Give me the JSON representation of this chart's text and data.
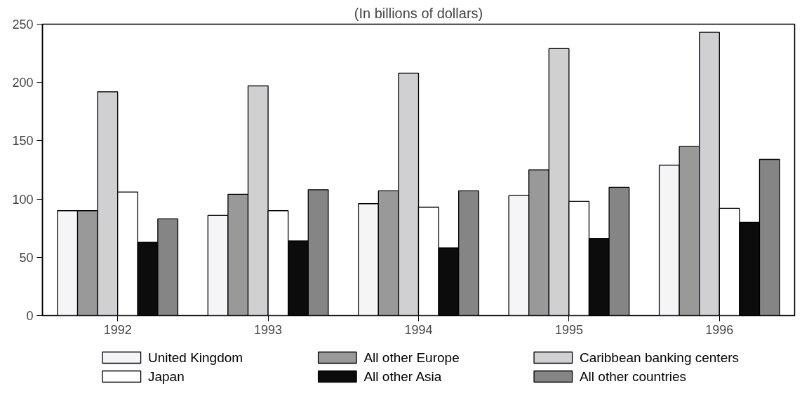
{
  "chart_data": {
    "type": "bar",
    "title": "(In billions of dollars)",
    "categories": [
      "1992",
      "1993",
      "1994",
      "1995",
      "1996"
    ],
    "series": [
      {
        "name": "United Kingdom",
        "color": "#f5f5f7",
        "values": [
          90,
          86,
          96,
          103,
          129
        ]
      },
      {
        "name": "All other Europe",
        "color": "#999999",
        "values": [
          90,
          104,
          107,
          125,
          145
        ]
      },
      {
        "name": "Caribbean banking centers",
        "color": "#d0d0d2",
        "values": [
          192,
          197,
          208,
          229,
          243
        ]
      },
      {
        "name": "Japan",
        "color": "#ffffff",
        "values": [
          106,
          90,
          93,
          98,
          92
        ]
      },
      {
        "name": "All other Asia",
        "color": "#0c0c0c",
        "values": [
          63,
          64,
          58,
          66,
          80
        ]
      },
      {
        "name": "All other countries",
        "color": "#858585",
        "values": [
          83,
          108,
          107,
          110,
          134
        ]
      }
    ],
    "ylim": [
      0,
      250
    ],
    "yticks": [
      0,
      50,
      100,
      150,
      200,
      250
    ],
    "grid": false,
    "legend": "bottom"
  }
}
